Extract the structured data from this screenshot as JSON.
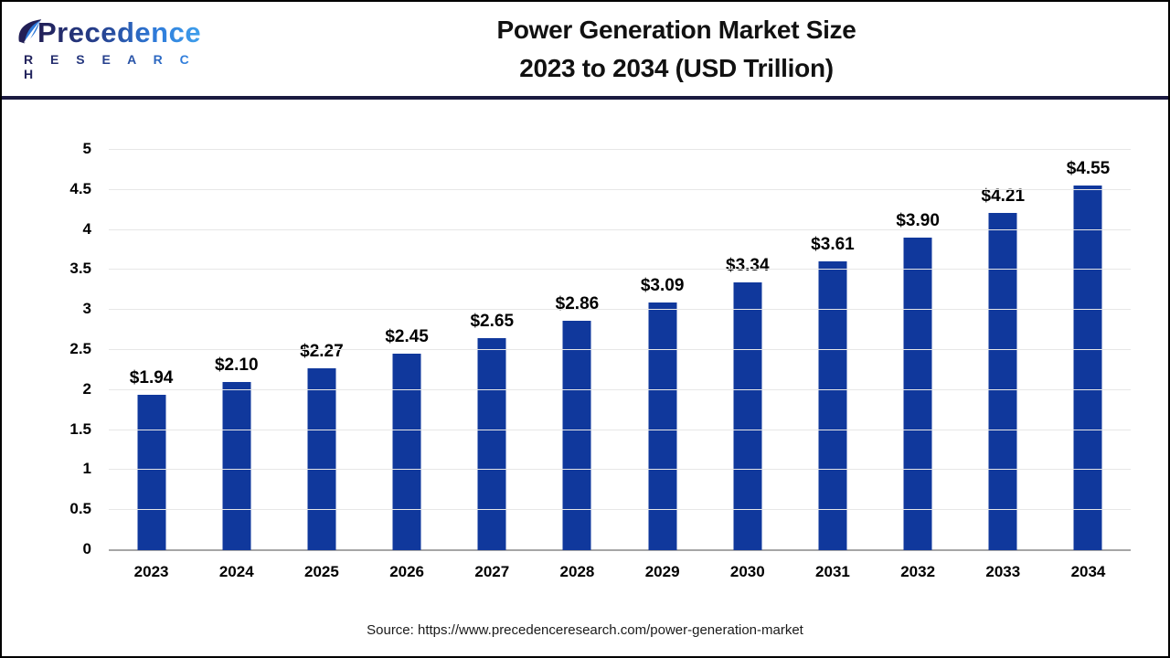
{
  "header": {
    "logo": {
      "name": "Precedence",
      "subname": "R E S E A R C H",
      "icon": "leaf-icon"
    },
    "title_line1": "Power Generation Market Size",
    "title_line2": "2023 to 2034 (USD Trillion)"
  },
  "chart_data": {
    "type": "bar",
    "title": "Power Generation Market Size 2023 to 2034 (USD Trillion)",
    "categories": [
      "2023",
      "2024",
      "2025",
      "2026",
      "2027",
      "2028",
      "2029",
      "2030",
      "2031",
      "2032",
      "2033",
      "2034"
    ],
    "values": [
      1.94,
      2.1,
      2.27,
      2.45,
      2.65,
      2.86,
      3.09,
      3.34,
      3.61,
      3.9,
      4.21,
      4.55
    ],
    "data_labels": [
      "$1.94",
      "$2.10",
      "$2.27",
      "$2.45",
      "$2.65",
      "$2.86",
      "$3.09",
      "$3.34",
      "$3.61",
      "$3.90",
      "$4.21",
      "$4.55"
    ],
    "xlabel": "",
    "ylabel": "",
    "ylim": [
      0,
      5
    ],
    "ytick_step": 0.5,
    "ytick_labels": [
      "0",
      "0.5",
      "1",
      "1.5",
      "2",
      "2.5",
      "3",
      "3.5",
      "4",
      "4.5",
      "5"
    ],
    "grid": true,
    "legend": "none",
    "bar_color": "#10389c"
  },
  "footer": {
    "source": "Source: https://www.precedenceresearch.com/power-generation-market"
  },
  "colors": {
    "bar": "#10389c",
    "header_divider": "#1b1a40",
    "gridline": "#e7e7e7",
    "axis_line": "#a6a6a6",
    "logo_dark": "#221f56",
    "logo_blue": "#3fa0ec"
  }
}
